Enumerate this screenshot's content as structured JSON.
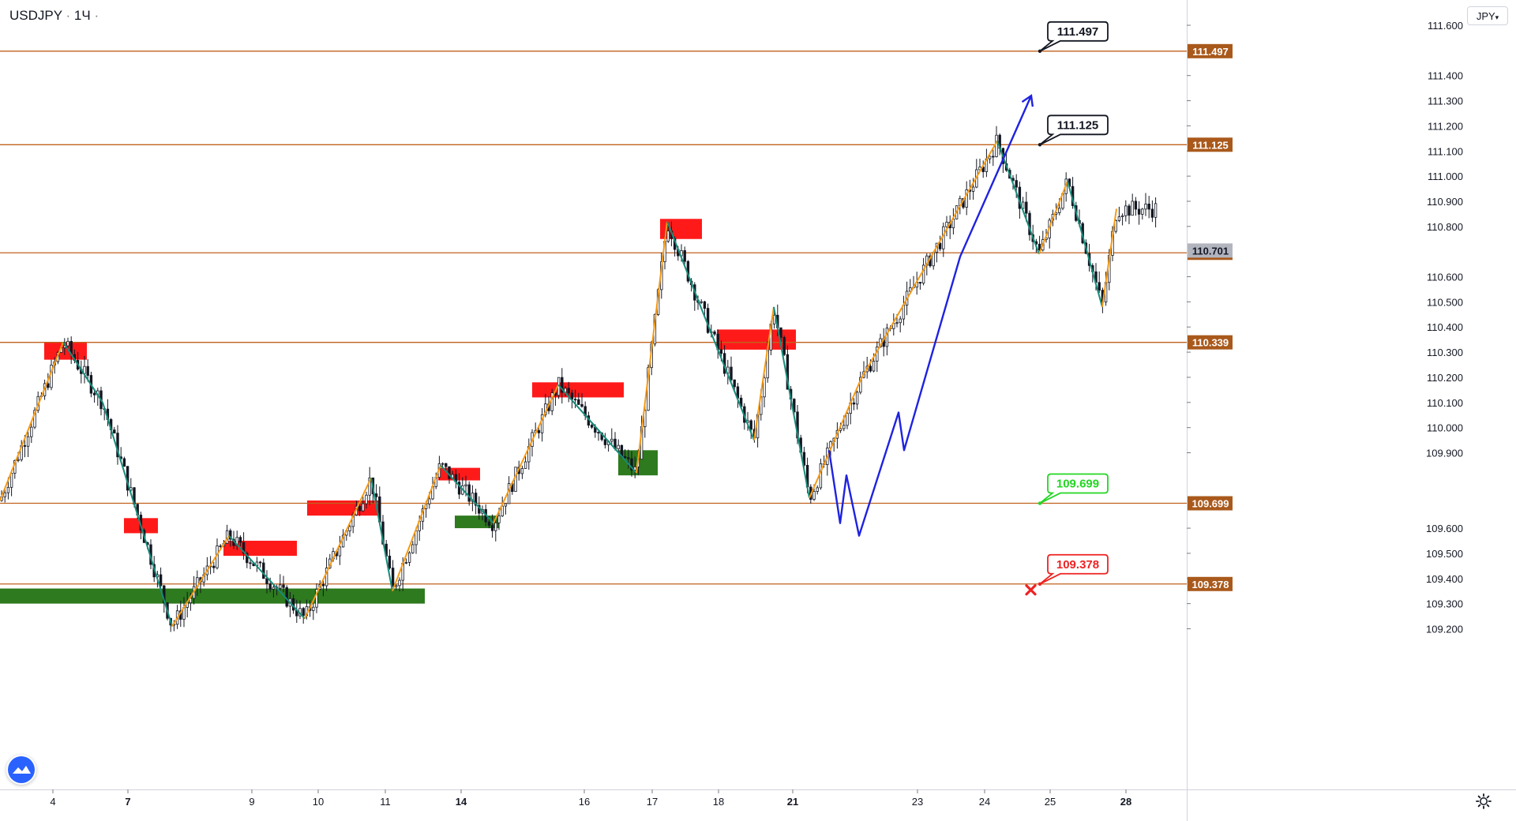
{
  "header": {
    "symbol": "USDJPY",
    "separator": "·",
    "interval": "1Ч",
    "currency": "JPY"
  },
  "colors": {
    "level_line": "#c0611e",
    "price_tag_bg": "#a9591b",
    "current_price_bg": "#b2b5be",
    "zigzag_up": "#f59a16",
    "zigzag_down": "#178c7a",
    "forecast": "#1f22e0",
    "supply_zone": "#ff1a1a",
    "demand_zone": "#2e7a1e",
    "candle": "#131722",
    "callout_tp": "#131722",
    "callout_entry": "#22d622",
    "callout_sl": "#ee2222"
  },
  "chart_data": {
    "type": "candlestick",
    "instrument": "USDJPY",
    "timeframe": "1Ч",
    "ylim": [
      109.16,
      111.66
    ],
    "y_ticks": [
      "111.600",
      "111.400",
      "111.300",
      "111.200",
      "111.100",
      "111.000",
      "110.900",
      "110.800",
      "110.600",
      "110.500",
      "110.400",
      "110.300",
      "110.200",
      "110.100",
      "110.000",
      "109.900",
      "109.600",
      "109.500",
      "109.400",
      "109.300",
      "109.200"
    ],
    "x_ticks": [
      "4",
      "7",
      "9",
      "10",
      "11",
      "14",
      "16",
      "17",
      "18",
      "21",
      "23",
      "24",
      "25",
      "28"
    ],
    "current_price": {
      "value": 110.701,
      "label": "110.701"
    },
    "levels": [
      {
        "value": 111.497,
        "label": "111.497"
      },
      {
        "value": 111.125,
        "label": "111.125"
      },
      {
        "value": 110.695,
        "label": "110.695"
      },
      {
        "value": 110.339,
        "label": "110.339"
      },
      {
        "value": 109.699,
        "label": "109.699"
      },
      {
        "value": 109.378,
        "label": "109.378"
      }
    ],
    "callouts": [
      {
        "label": "111.497",
        "value": 111.497,
        "role": "take-profit-2"
      },
      {
        "label": "111.125",
        "value": 111.125,
        "role": "take-profit-1"
      },
      {
        "label": "109.699",
        "value": 109.699,
        "role": "entry"
      },
      {
        "label": "109.378",
        "value": 109.378,
        "role": "stop-loss"
      }
    ],
    "zigzag": [
      [
        0,
        109.71
      ],
      [
        80,
        110.34
      ],
      [
        130,
        110.1
      ],
      [
        218,
        109.21
      ],
      [
        290,
        109.57
      ],
      [
        386,
        109.24
      ],
      [
        470,
        109.8
      ],
      [
        497,
        109.35
      ],
      [
        558,
        109.85
      ],
      [
        625,
        109.62
      ],
      [
        707,
        110.17
      ],
      [
        806,
        109.82
      ],
      [
        845,
        110.82
      ],
      [
        890,
        110.46
      ],
      [
        955,
        109.95
      ],
      [
        980,
        110.48
      ],
      [
        1025,
        109.72
      ],
      [
        1090,
        110.19
      ],
      [
        1263,
        111.14
      ],
      [
        1316,
        110.69
      ],
      [
        1352,
        110.98
      ],
      [
        1396,
        110.48
      ],
      [
        1414,
        110.87
      ]
    ],
    "forecast_path": [
      [
        1050,
        109.91
      ],
      [
        1064,
        109.62
      ],
      [
        1072,
        109.81
      ],
      [
        1088,
        109.57
      ],
      [
        1138,
        110.06
      ],
      [
        1145,
        109.91
      ],
      [
        1216,
        110.68
      ],
      [
        1306,
        111.32
      ]
    ],
    "supply_zones": [
      {
        "x0": 56,
        "x1": 110,
        "top": 110.34,
        "bottom": 110.27
      },
      {
        "x0": 157,
        "x1": 200,
        "top": 109.64,
        "bottom": 109.58
      },
      {
        "x0": 283,
        "x1": 376,
        "top": 109.55,
        "bottom": 109.49
      },
      {
        "x0": 389,
        "x1": 482,
        "top": 109.71,
        "bottom": 109.65
      },
      {
        "x0": 555,
        "x1": 608,
        "top": 109.84,
        "bottom": 109.79
      },
      {
        "x0": 674,
        "x1": 790,
        "top": 110.18,
        "bottom": 110.12
      },
      {
        "x0": 836,
        "x1": 889,
        "top": 110.83,
        "bottom": 110.75
      },
      {
        "x0": 908,
        "x1": 1008,
        "top": 110.39,
        "bottom": 110.31
      }
    ],
    "demand_zones": [
      {
        "x0": 0,
        "x1": 538,
        "top": 109.36,
        "bottom": 109.3
      },
      {
        "x0": 576,
        "x1": 632,
        "top": 109.65,
        "bottom": 109.6
      },
      {
        "x0": 783,
        "x1": 833,
        "top": 109.91,
        "bottom": 109.81
      }
    ]
  }
}
